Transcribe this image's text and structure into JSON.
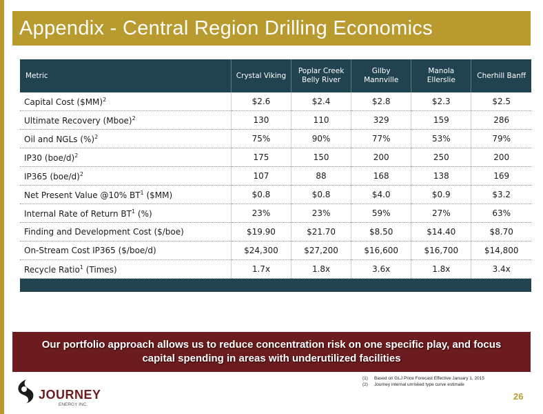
{
  "title": "Appendix - Central Region Drilling Economics",
  "table": {
    "headers": [
      {
        "text": "Metric"
      },
      {
        "text": "Crystal Viking"
      },
      {
        "line1": "Poplar Creek",
        "line2": "Belly River"
      },
      {
        "line1": "Gilby",
        "line2": "Mannville"
      },
      {
        "line1": "Manola",
        "line2": "Ellerslie"
      },
      {
        "text": "Cherhill Banff"
      }
    ],
    "rows": [
      {
        "label": "Capital Cost ($MM)",
        "sup": "2",
        "suffix": "",
        "values": [
          "$2.6",
          "$2.4",
          "$2.8",
          "$2.3",
          "$2.5"
        ]
      },
      {
        "label": "Ultimate Recovery (Mboe)",
        "sup": "2",
        "suffix": "",
        "values": [
          "130",
          "110",
          "329",
          "159",
          "286"
        ]
      },
      {
        "label": "Oil and NGLs (%)",
        "sup": "2",
        "suffix": "",
        "values": [
          "75%",
          "90%",
          "77%",
          "53%",
          "79%"
        ]
      },
      {
        "label": "IP30 (boe/d)",
        "sup": "2",
        "suffix": "",
        "values": [
          "175",
          "150",
          "200",
          "250",
          "200"
        ]
      },
      {
        "label": "IP365 (boe/d)",
        "sup": "2",
        "suffix": "",
        "values": [
          "107",
          "88",
          "168",
          "138",
          "169"
        ]
      },
      {
        "label": "Net Present Value @10% BT",
        "sup": "1",
        "suffix": " ($MM)",
        "values": [
          "$0.8",
          "$0.8",
          "$4.0",
          "$0.9",
          "$3.2"
        ]
      },
      {
        "label": "Internal Rate of Return BT",
        "sup": "1",
        "suffix": " (%)",
        "values": [
          "23%",
          "23%",
          "59%",
          "27%",
          "63%"
        ]
      },
      {
        "label": "Finding and Development Cost ($/boe)",
        "sup": "",
        "suffix": "",
        "values": [
          "$19.90",
          "$21.70",
          "$8.50",
          "$14.40",
          "$8.70"
        ]
      },
      {
        "label": "On-Stream Cost IP365 ($/boe/d)",
        "sup": "",
        "suffix": "",
        "values": [
          "$24,300",
          "$27,200",
          "$16,600",
          "$16,700",
          "$14,800"
        ]
      },
      {
        "label": "Recycle Ratio",
        "sup": "1",
        "suffix": " (Times)",
        "values": [
          "1.7x",
          "1.8x",
          "3.6x",
          "1.8x",
          "3.4x"
        ]
      }
    ]
  },
  "banner": "Our portfolio approach allows us to reduce concentration risk on one specific play, and focus capital spending in areas with underutilized facilities",
  "footnotes": [
    {
      "num": "(1)",
      "text": "Based on GLJ Price Forecast Effective January 1, 2015"
    },
    {
      "num": "(2)",
      "text": "Journey internal unrisked type curve estimate"
    }
  ],
  "logo": {
    "word": "JOURNEY",
    "sub": "ENERGY INC."
  },
  "page_number": "26",
  "colors": {
    "gold": "#b99a2e",
    "teal_header": "#21434f",
    "maroon": "#6c1c1e"
  }
}
